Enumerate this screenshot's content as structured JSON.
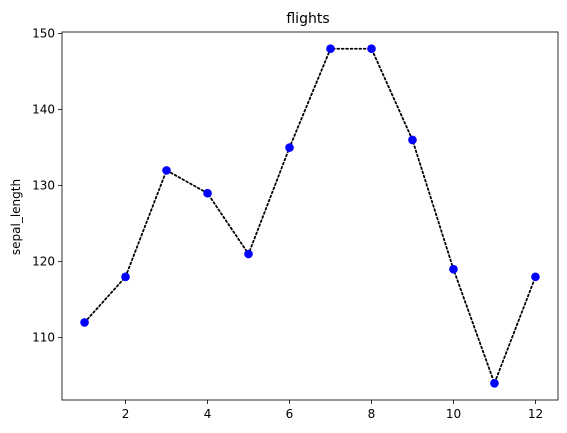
{
  "chart_data": {
    "type": "line",
    "title": "flights",
    "xlabel": "",
    "ylabel": "sepal_length",
    "x": [
      1,
      2,
      3,
      4,
      5,
      6,
      7,
      8,
      9,
      10,
      11,
      12
    ],
    "series": [
      {
        "values": [
          112,
          118,
          132,
          129,
          121,
          135,
          148,
          148,
          136,
          119,
          104,
          118
        ],
        "line_color": "#000000",
        "line_style": "dotted",
        "marker_color": "#0000ff"
      }
    ],
    "xlim": [
      0.45,
      12.55
    ],
    "ylim": [
      101.8,
      150.2
    ],
    "xticks": [
      2,
      4,
      6,
      8,
      10,
      12
    ],
    "yticks": [
      110,
      120,
      130,
      140,
      150
    ],
    "grid": false,
    "legend": false
  }
}
